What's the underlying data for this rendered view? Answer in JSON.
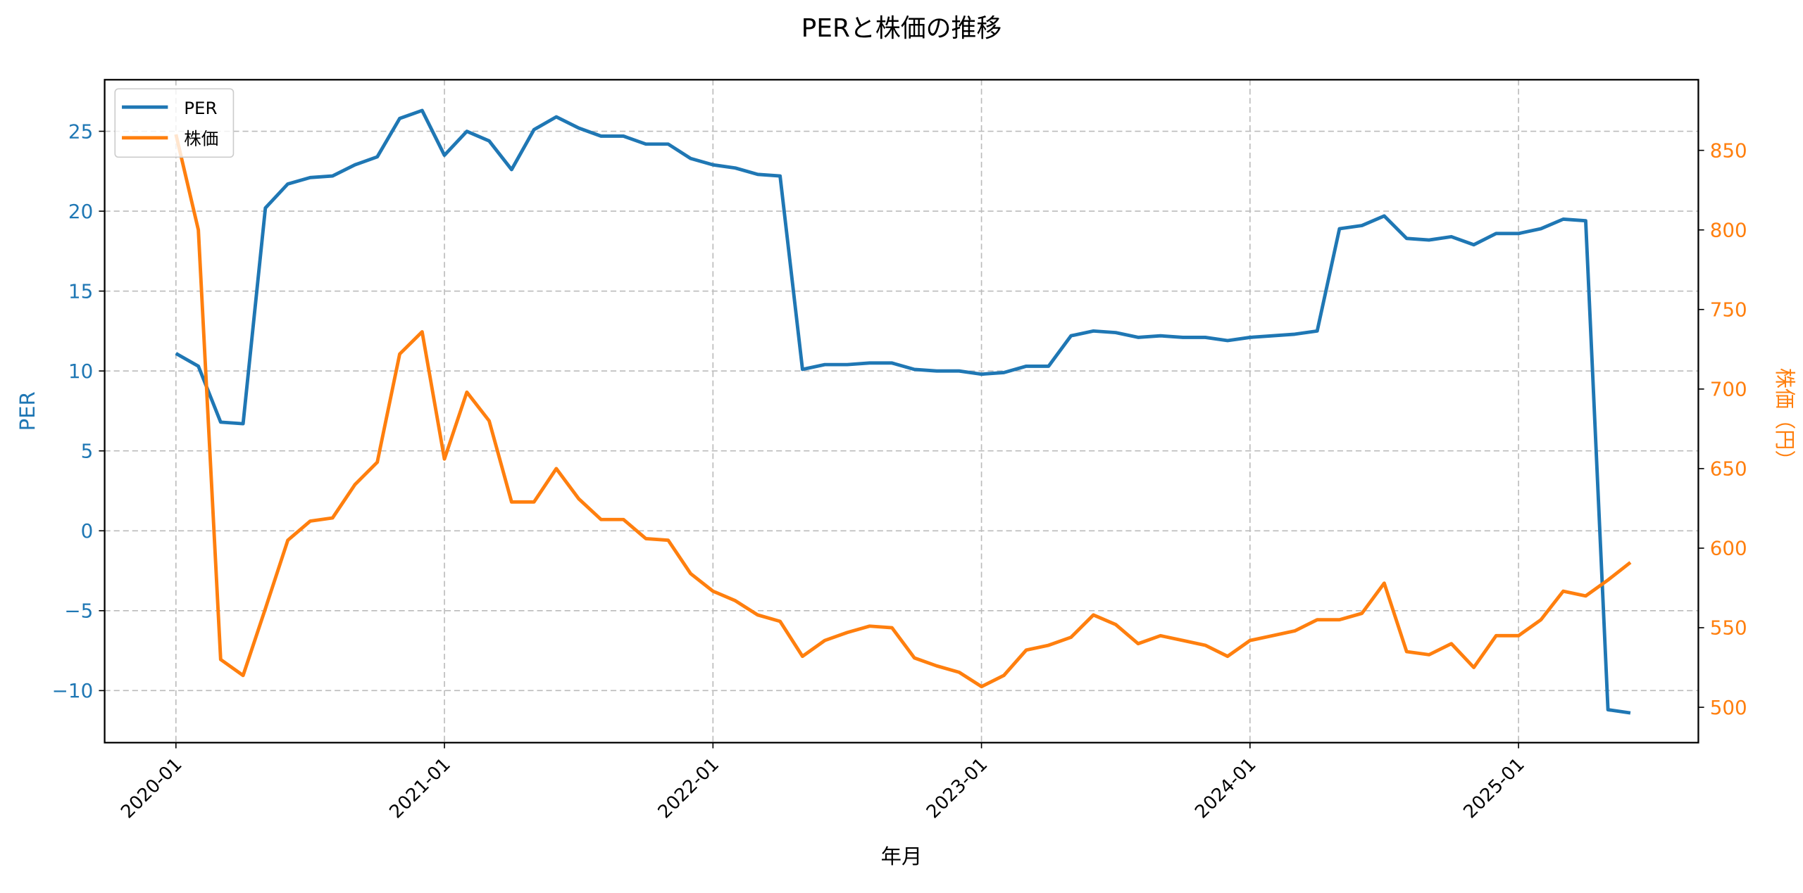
{
  "chart_data": {
    "type": "line",
    "title": "PERと株価の推移",
    "xlabel": "年月",
    "ylabel_left": "PER",
    "ylabel_right": "株価（円）",
    "x_ticks": [
      "2020-01",
      "2021-01",
      "2022-01",
      "2023-01",
      "2024-01",
      "2025-01"
    ],
    "y_left_ticks": [
      25,
      20,
      15,
      10,
      5,
      0,
      -5,
      -10
    ],
    "y_right_ticks": [
      850,
      800,
      750,
      700,
      650,
      600,
      550,
      500
    ],
    "ylim_left": [
      -13.2,
      28.3
    ],
    "ylim_right": [
      477,
      893
    ],
    "grid": true,
    "legend_position": "upper left",
    "x": [
      "2020-01",
      "2020-02",
      "2020-03",
      "2020-04",
      "2020-05",
      "2020-06",
      "2020-07",
      "2020-08",
      "2020-09",
      "2020-10",
      "2020-11",
      "2020-12",
      "2021-01",
      "2021-02",
      "2021-03",
      "2021-04",
      "2021-05",
      "2021-06",
      "2021-07",
      "2021-08",
      "2021-09",
      "2021-10",
      "2021-11",
      "2021-12",
      "2022-01",
      "2022-02",
      "2022-03",
      "2022-04",
      "2022-05",
      "2022-06",
      "2022-07",
      "2022-08",
      "2022-09",
      "2022-10",
      "2022-11",
      "2022-12",
      "2023-01",
      "2023-02",
      "2023-03",
      "2023-04",
      "2023-05",
      "2023-06",
      "2023-07",
      "2023-08",
      "2023-09",
      "2023-10",
      "2023-11",
      "2023-12",
      "2024-01",
      "2024-02",
      "2024-03",
      "2024-04",
      "2024-05",
      "2024-06",
      "2024-07",
      "2024-08",
      "2024-09",
      "2024-10",
      "2024-11",
      "2024-12",
      "2025-01",
      "2025-02",
      "2025-03",
      "2025-04",
      "2025-05",
      "2025-06"
    ],
    "series": [
      {
        "name": "PER",
        "axis": "left",
        "color": "#1f77b4",
        "values": [
          11.1,
          10.3,
          6.8,
          6.7,
          20.2,
          21.7,
          22.1,
          22.2,
          22.9,
          23.4,
          25.8,
          26.3,
          23.5,
          25.0,
          24.4,
          22.6,
          25.1,
          25.9,
          25.2,
          24.7,
          24.7,
          24.2,
          24.2,
          23.3,
          22.9,
          22.7,
          22.3,
          22.2,
          10.1,
          10.4,
          10.4,
          10.5,
          10.5,
          10.1,
          10.0,
          10.0,
          9.8,
          9.9,
          10.3,
          10.3,
          12.2,
          12.5,
          12.4,
          12.1,
          12.2,
          12.1,
          12.1,
          11.9,
          12.1,
          12.2,
          12.3,
          12.5,
          18.9,
          19.1,
          19.7,
          18.3,
          18.2,
          18.4,
          17.9,
          18.6,
          18.6,
          18.9,
          19.5,
          19.4,
          -11.2,
          -11.4
        ]
      },
      {
        "name": "株価",
        "axis": "right",
        "color": "#ff7f0e",
        "values": [
          860,
          800,
          530,
          520,
          562,
          605,
          617,
          619,
          640,
          654,
          722,
          736,
          656,
          698,
          680,
          629,
          629,
          650,
          631,
          618,
          618,
          606,
          605,
          584,
          573,
          567,
          558,
          554,
          532,
          542,
          547,
          551,
          550,
          531,
          526,
          522,
          513,
          520,
          536,
          539,
          544,
          558,
          552,
          540,
          545,
          542,
          539,
          532,
          542,
          545,
          548,
          555,
          555,
          559,
          578,
          535,
          533,
          540,
          525,
          545,
          545,
          555,
          573,
          570,
          580,
          591
        ]
      }
    ]
  },
  "legend": {
    "items": [
      "PER",
      "株価"
    ]
  }
}
